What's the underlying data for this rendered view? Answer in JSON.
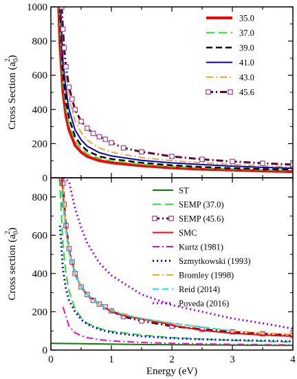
{
  "chart_data": [
    {
      "type": "line",
      "panel": "top",
      "xlabel": "",
      "ylabel": "Cross Section (a0^2)",
      "ylabel_main": "Cross Section (a",
      "ylabel_sub": "0",
      "ylabel_sup": "2",
      "ylabel_close": ")",
      "xlim": [
        0,
        4
      ],
      "ylim": [
        0,
        1000
      ],
      "yticks": [
        "0",
        "200",
        "400",
        "600",
        "800",
        "1000"
      ],
      "legend_position": "top-right",
      "series": [
        {
          "name": "35.0",
          "color": "#ff0000",
          "dash": "solid",
          "width": 4,
          "x": [
            0.13,
            0.15,
            0.2,
            0.25,
            0.3,
            0.4,
            0.5,
            0.6,
            0.8,
            1.0,
            1.5,
            2.0,
            2.5,
            3.0,
            3.5,
            4.0
          ],
          "y": [
            1000,
            780,
            500,
            360,
            280,
            190,
            150,
            125,
            100,
            88,
            70,
            58,
            50,
            45,
            40,
            36
          ]
        },
        {
          "name": "37.0",
          "color": "#22dd22",
          "dash": "long-dash",
          "width": 2,
          "x": [
            0.14,
            0.16,
            0.2,
            0.25,
            0.3,
            0.4,
            0.5,
            0.6,
            0.8,
            1.0,
            1.5,
            2.0,
            2.5,
            3.0,
            3.5,
            4.0
          ],
          "y": [
            1000,
            800,
            550,
            400,
            310,
            215,
            170,
            140,
            113,
            98,
            78,
            65,
            57,
            51,
            46,
            42
          ]
        },
        {
          "name": "39.0",
          "color": "#000000",
          "dash": "dash",
          "width": 2.5,
          "x": [
            0.15,
            0.17,
            0.2,
            0.25,
            0.3,
            0.4,
            0.5,
            0.6,
            0.8,
            1.0,
            1.5,
            2.0,
            2.5,
            3.0,
            3.5,
            4.0
          ],
          "y": [
            1000,
            820,
            610,
            450,
            350,
            240,
            190,
            158,
            125,
            110,
            88,
            73,
            63,
            56,
            51,
            47
          ]
        },
        {
          "name": "41.0",
          "color": "#0000cc",
          "dash": "solid",
          "width": 2,
          "x": [
            0.16,
            0.18,
            0.2,
            0.25,
            0.3,
            0.4,
            0.5,
            0.6,
            0.8,
            1.0,
            1.5,
            2.0,
            2.5,
            3.0,
            3.5,
            4.0
          ],
          "y": [
            1000,
            850,
            680,
            510,
            400,
            280,
            222,
            185,
            147,
            128,
            102,
            87,
            77,
            68,
            61,
            56
          ]
        },
        {
          "name": "43.0",
          "color": "#f5a623",
          "dash": "dash-dot",
          "width": 2,
          "x": [
            0.17,
            0.19,
            0.22,
            0.25,
            0.3,
            0.4,
            0.5,
            0.6,
            0.8,
            1.0,
            1.5,
            2.0,
            2.5,
            3.0,
            3.5,
            4.0
          ],
          "y": [
            1000,
            860,
            700,
            580,
            460,
            330,
            265,
            220,
            175,
            150,
            118,
            100,
            88,
            78,
            70,
            64
          ]
        },
        {
          "name": "45.6",
          "color": "#660033",
          "dash": "dash-dot",
          "width": 3,
          "marker": "square",
          "x": [
            0.18,
            0.2,
            0.22,
            0.25,
            0.3,
            0.35,
            0.4,
            0.5,
            0.6,
            0.7,
            0.8,
            0.9,
            1.0,
            1.2,
            1.5,
            2.0,
            2.5,
            3.0,
            3.5,
            4.0
          ],
          "y": [
            1000,
            870,
            760,
            650,
            530,
            460,
            400,
            330,
            290,
            260,
            240,
            225,
            205,
            175,
            152,
            125,
            108,
            95,
            85,
            77
          ]
        }
      ]
    },
    {
      "type": "line",
      "panel": "bottom",
      "xlabel": "Energy (eV)",
      "ylabel": "Cross section (a0^2)",
      "ylabel_main": "Cross section (a",
      "ylabel_sub": "0",
      "ylabel_sup": "2",
      "ylabel_close": ")",
      "xlim": [
        0,
        4
      ],
      "ylim": [
        0,
        900
      ],
      "xticks": [
        "0",
        "1",
        "2",
        "3",
        "4"
      ],
      "yticks": [
        "0",
        "200",
        "400",
        "600",
        "800"
      ],
      "legend_position": "top-right",
      "series": [
        {
          "name": "ST",
          "color": "#008000",
          "dash": "solid",
          "width": 2,
          "x": [
            0,
            0.5,
            1.0,
            1.5,
            2.0,
            2.5,
            3.0,
            3.5,
            4.0
          ],
          "y": [
            35,
            33,
            31,
            29,
            28,
            27,
            26,
            25,
            24
          ]
        },
        {
          "name": "SEMP (37.0)",
          "color": "#22dd22",
          "dash": "long-dash",
          "width": 2,
          "x": [
            0.14,
            0.16,
            0.2,
            0.25,
            0.3,
            0.4,
            0.5,
            0.6,
            0.8,
            1.0,
            1.5,
            2.0,
            2.5,
            3.0,
            3.5,
            4.0
          ],
          "y": [
            900,
            800,
            550,
            400,
            310,
            215,
            170,
            140,
            113,
            98,
            78,
            65,
            57,
            51,
            46,
            42
          ]
        },
        {
          "name": "SEMP (45.6)",
          "color": "#660033",
          "dash": "dash-dot",
          "width": 3,
          "marker": "square",
          "x": [
            0.18,
            0.2,
            0.22,
            0.25,
            0.3,
            0.35,
            0.4,
            0.5,
            0.6,
            0.7,
            0.8,
            0.9,
            1.0,
            1.2,
            1.5,
            2.0,
            2.5,
            3.0,
            3.5,
            4.0
          ],
          "y": [
            900,
            870,
            760,
            650,
            530,
            460,
            400,
            330,
            290,
            260,
            240,
            225,
            205,
            175,
            152,
            125,
            108,
            95,
            85,
            77
          ]
        },
        {
          "name": "SMC",
          "color": "#ff0000",
          "dash": "solid",
          "width": 2,
          "x": [
            0.18,
            0.2,
            0.25,
            0.3,
            0.4,
            0.5,
            0.6,
            0.8,
            1.0,
            1.2,
            1.5,
            1.8,
            2.0,
            2.5,
            3.0,
            3.5,
            4.0
          ],
          "y": [
            900,
            820,
            640,
            520,
            400,
            330,
            290,
            240,
            200,
            180,
            162,
            145,
            130,
            103,
            88,
            78,
            72
          ]
        },
        {
          "name": "Kurtz (1981)",
          "color": "#ff00cc",
          "dash": "dash-dot",
          "width": 2,
          "x": [
            0.2,
            0.3,
            0.4,
            0.5,
            0.6,
            0.8,
            1.0,
            1.5,
            2.0,
            2.5,
            3.0,
            3.5,
            4.0
          ],
          "y": [
            225,
            125,
            90,
            75,
            65,
            54,
            48,
            40,
            35,
            32,
            30,
            28,
            27
          ]
        },
        {
          "name": "Szmytkowski (1993)",
          "color": "#0000ff",
          "dash": "dot",
          "width": 3,
          "x": [
            0.15,
            0.2,
            0.25,
            0.3,
            0.4,
            0.5,
            0.6,
            0.8,
            1.0,
            1.5,
            2.0,
            2.5,
            3.0,
            3.5,
            4.0
          ],
          "y": [
            650,
            420,
            320,
            260,
            200,
            160,
            135,
            108,
            92,
            72,
            62,
            56,
            52,
            49,
            46
          ]
        },
        {
          "name": "Bromley (1998)",
          "color": "#f5a623",
          "dash": "dash-dot",
          "width": 2,
          "x": [
            0.2,
            0.25,
            0.3,
            0.4,
            0.5,
            0.6,
            0.8,
            1.0,
            1.2,
            1.5,
            2.0,
            2.5,
            3.0,
            3.5,
            4.0
          ],
          "y": [
            850,
            650,
            520,
            400,
            330,
            290,
            240,
            210,
            190,
            165,
            140,
            120,
            100,
            90,
            82
          ]
        },
        {
          "name": "Reid (2014)",
          "color": "#00e5ee",
          "dash": "dash",
          "width": 2,
          "x": [
            0.18,
            0.2,
            0.25,
            0.3,
            0.4,
            0.5,
            0.6,
            0.8,
            1.0,
            1.2,
            1.5,
            2.0,
            2.5,
            3.0
          ],
          "y": [
            830,
            760,
            620,
            510,
            400,
            330,
            290,
            238,
            205,
            185,
            165,
            140,
            120,
            100
          ]
        },
        {
          "name": "Poveda (2016)",
          "color": "#aa00ee",
          "dash": "dot",
          "width": 3,
          "x": [
            0.2,
            0.3,
            0.4,
            0.5,
            0.6,
            0.8,
            1.0,
            1.5,
            2.0,
            2.5,
            3.0,
            3.5,
            4.0
          ],
          "y": [
            900,
            880,
            740,
            640,
            560,
            455,
            390,
            290,
            235,
            200,
            165,
            140,
            112
          ]
        }
      ]
    }
  ]
}
